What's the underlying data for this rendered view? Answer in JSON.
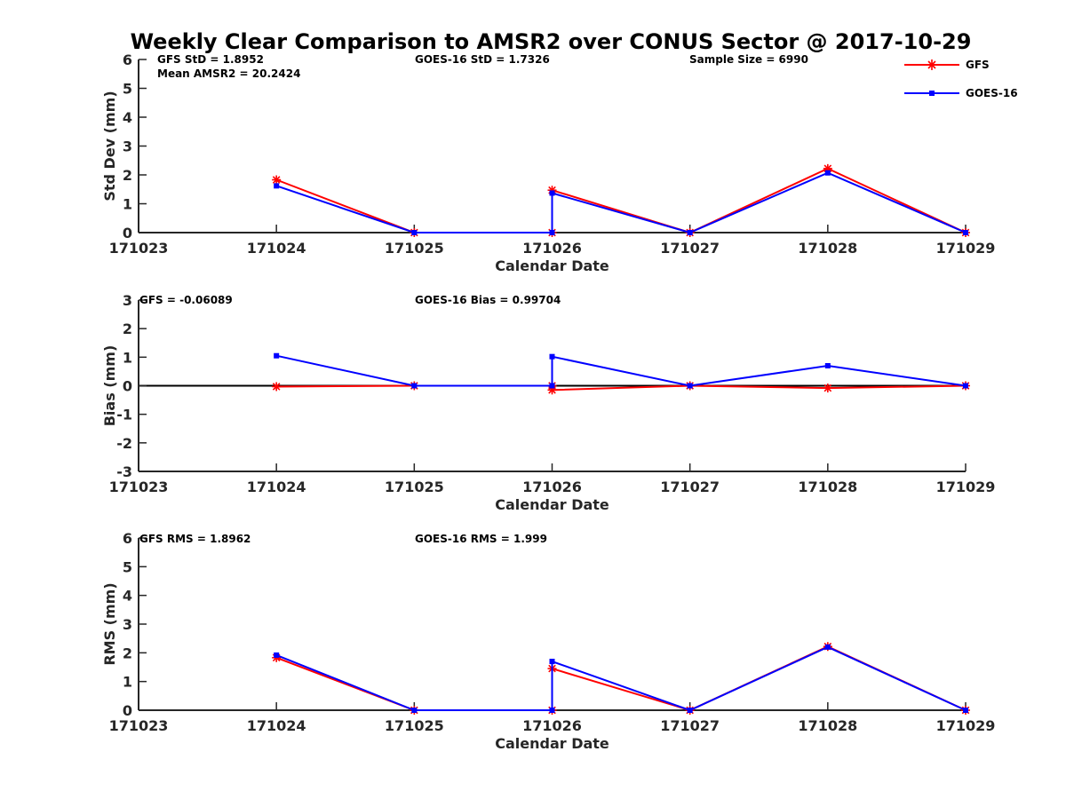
{
  "figure_title": "Weekly Clear Comparison to AMSR2 over CONUS Sector @ 2017-10-29",
  "legend": [
    {
      "name": "GFS",
      "color": "#ff0000",
      "marker": "star"
    },
    {
      "name": "GOES-16",
      "color": "#0000ff",
      "marker": "square"
    }
  ],
  "chart_data": [
    {
      "type": "line",
      "title": "",
      "xlabel": "Calendar Date",
      "ylabel": "Std Dev (mm)",
      "x_ticks": [
        "171023",
        "171024",
        "171025",
        "171026",
        "171027",
        "171028",
        "171029"
      ],
      "xlim": [
        0,
        6
      ],
      "ylim": [
        0,
        6
      ],
      "y_ticks": [
        0,
        1,
        2,
        3,
        4,
        5,
        6
      ],
      "grid": false,
      "legend_position": "top-right",
      "annotations": [
        {
          "id": "gfs_std",
          "text": "GFS StD = 1.8952"
        },
        {
          "id": "mean_amsr2",
          "text": "Mean AMSR2 = 20.2424"
        },
        {
          "id": "goes_std",
          "text": "GOES-16 StD = 1.7326"
        },
        {
          "id": "sample_size",
          "text": "Sample Size = 6990"
        }
      ],
      "series": [
        {
          "name": "GFS",
          "color": "#ff0000",
          "marker": "star",
          "x": [
            1,
            2,
            3,
            3,
            4,
            5,
            6
          ],
          "y": [
            1.83,
            0.0,
            0.0,
            1.47,
            0.0,
            2.22,
            0.0
          ]
        },
        {
          "name": "GOES-16",
          "color": "#0000ff",
          "marker": "square",
          "x": [
            1,
            2,
            3,
            3,
            4,
            5,
            6
          ],
          "y": [
            1.62,
            0.0,
            0.0,
            1.37,
            0.0,
            2.07,
            0.0
          ]
        }
      ]
    },
    {
      "type": "line",
      "title": "",
      "xlabel": "Calendar Date",
      "ylabel": "Bias (mm)",
      "x_ticks": [
        "171023",
        "171024",
        "171025",
        "171026",
        "171027",
        "171028",
        "171029"
      ],
      "xlim": [
        0,
        6
      ],
      "ylim": [
        -3,
        3
      ],
      "y_ticks": [
        -3,
        -2,
        -1,
        0,
        1,
        2,
        3
      ],
      "grid": false,
      "zero_line": true,
      "annotations": [
        {
          "id": "gfs_bias",
          "text": "GFS = -0.06089"
        },
        {
          "id": "goes_bias",
          "text": "GOES-16 Bias  = 0.99704"
        }
      ],
      "series": [
        {
          "name": "GFS",
          "color": "#ff0000",
          "marker": "star",
          "x": [
            1,
            2,
            3,
            3,
            4,
            5,
            6
          ],
          "y": [
            -0.03,
            0.0,
            0.0,
            -0.15,
            0.0,
            -0.08,
            0.0
          ]
        },
        {
          "name": "GOES-16",
          "color": "#0000ff",
          "marker": "square",
          "x": [
            1,
            2,
            3,
            3,
            4,
            5,
            6
          ],
          "y": [
            1.05,
            0.0,
            0.0,
            1.02,
            0.0,
            0.7,
            0.0
          ]
        }
      ]
    },
    {
      "type": "line",
      "title": "",
      "xlabel": "Calendar Date",
      "ylabel": "RMS (mm)",
      "x_ticks": [
        "171023",
        "171024",
        "171025",
        "171026",
        "171027",
        "171028",
        "171029"
      ],
      "xlim": [
        0,
        6
      ],
      "ylim": [
        0,
        6
      ],
      "y_ticks": [
        0,
        1,
        2,
        3,
        4,
        5,
        6
      ],
      "grid": false,
      "annotations": [
        {
          "id": "gfs_rms",
          "text": "GFS RMS = 1.8962"
        },
        {
          "id": "goes_rms",
          "text": "GOES-16 RMS = 1.999"
        }
      ],
      "series": [
        {
          "name": "GFS",
          "color": "#ff0000",
          "marker": "star",
          "x": [
            1,
            2,
            3,
            3,
            4,
            5,
            6
          ],
          "y": [
            1.83,
            0.0,
            0.0,
            1.45,
            0.0,
            2.22,
            0.0
          ]
        },
        {
          "name": "GOES-16",
          "color": "#0000ff",
          "marker": "square",
          "x": [
            1,
            2,
            3,
            3,
            4,
            5,
            6
          ],
          "y": [
            1.92,
            0.0,
            0.0,
            1.7,
            0.0,
            2.2,
            0.0
          ]
        }
      ]
    }
  ]
}
